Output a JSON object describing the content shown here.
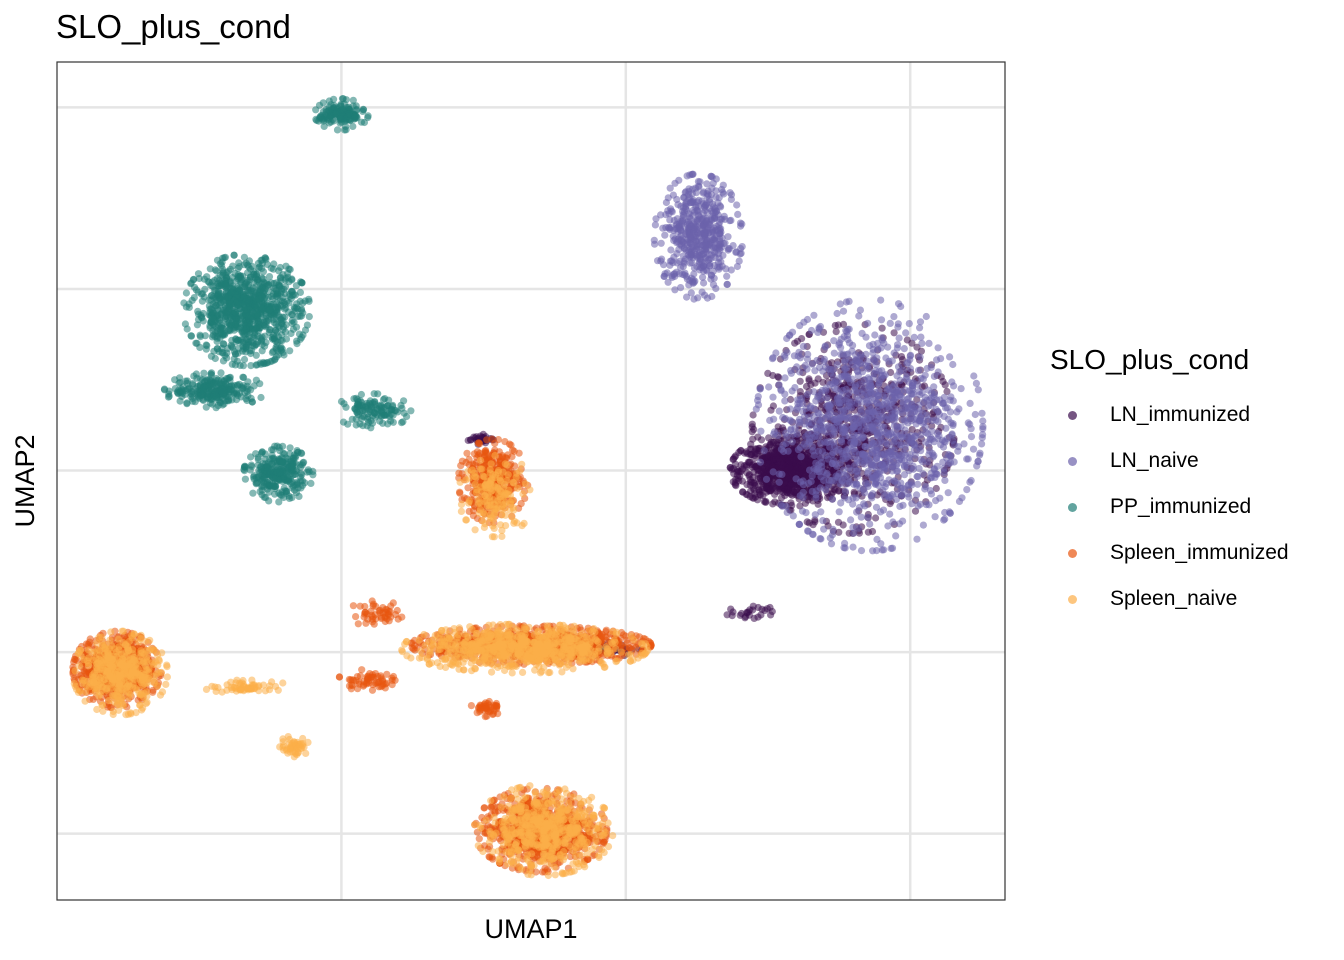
{
  "chart_data": {
    "type": "scatter",
    "title": "SLO_plus_cond",
    "xlabel": "UMAP1",
    "ylabel": "UMAP2",
    "xlim": [
      -10,
      20
    ],
    "ylim": [
      -11,
      13
    ],
    "x_gridlines": [
      -1,
      8,
      17
    ],
    "y_gridlines": [
      11.7,
      6.5,
      1.3,
      -3.9,
      -9.1
    ],
    "tick_labels_shown": false,
    "grid": true,
    "legend": {
      "title": "SLO_plus_cond",
      "position": "right"
    },
    "series": [
      {
        "name": "LN_immunized",
        "color": "#3a0d4d",
        "clusters": [
          {
            "cx": 13.2,
            "cy": 1.3,
            "rx": 1.9,
            "ry": 1.0,
            "n": 900
          },
          {
            "cx": 15.2,
            "cy": 2.5,
            "rx": 3.2,
            "ry": 3.0,
            "n": 650
          },
          {
            "cx": 12.0,
            "cy": -2.8,
            "rx": 0.8,
            "ry": 0.25,
            "n": 25
          },
          {
            "cx": 7.1,
            "cy": -3.8,
            "rx": 1.5,
            "ry": 0.25,
            "n": 80
          },
          {
            "cx": 3.4,
            "cy": 2.2,
            "rx": 0.5,
            "ry": 0.15,
            "n": 30
          }
        ]
      },
      {
        "name": "LN_naive",
        "color": "#6c63ab",
        "clusters": [
          {
            "cx": 15.7,
            "cy": 2.6,
            "rx": 3.6,
            "ry": 3.6,
            "n": 1100
          },
          {
            "cx": 10.3,
            "cy": 8.0,
            "rx": 1.4,
            "ry": 1.8,
            "n": 500
          }
        ]
      },
      {
        "name": "PP_immunized",
        "color": "#1f7d76",
        "clusters": [
          {
            "cx": -1.0,
            "cy": 11.5,
            "rx": 0.85,
            "ry": 0.45,
            "n": 150
          },
          {
            "cx": -4.0,
            "cy": 5.9,
            "rx": 2.0,
            "ry": 1.6,
            "n": 900
          },
          {
            "cx": -5.0,
            "cy": 3.6,
            "rx": 1.6,
            "ry": 0.5,
            "n": 250
          },
          {
            "cx": -3.0,
            "cy": 1.2,
            "rx": 1.1,
            "ry": 0.8,
            "n": 280
          },
          {
            "cx": 0.0,
            "cy": 3.0,
            "rx": 1.2,
            "ry": 0.5,
            "n": 120
          },
          {
            "cx": 5.5,
            "cy": -3.8,
            "rx": 1.8,
            "ry": 0.2,
            "n": 80
          }
        ]
      },
      {
        "name": "Spleen_immunized",
        "color": "#e8560f",
        "clusters": [
          {
            "cx": 3.8,
            "cy": 1.0,
            "rx": 1.1,
            "ry": 1.2,
            "n": 350
          },
          {
            "cx": 5.0,
            "cy": -3.7,
            "rx": 3.8,
            "ry": 0.55,
            "n": 900
          },
          {
            "cx": -8.1,
            "cy": -4.4,
            "rx": 1.4,
            "ry": 1.1,
            "n": 650
          },
          {
            "cx": 5.3,
            "cy": -9.0,
            "rx": 2.1,
            "ry": 1.2,
            "n": 750
          },
          {
            "cx": 0.2,
            "cy": -2.8,
            "rx": 1.0,
            "ry": 0.4,
            "n": 50
          },
          {
            "cx": -0.2,
            "cy": -4.7,
            "rx": 0.9,
            "ry": 0.3,
            "n": 60
          },
          {
            "cx": 3.6,
            "cy": -5.5,
            "rx": 0.5,
            "ry": 0.3,
            "n": 40
          }
        ]
      },
      {
        "name": "Spleen_naive",
        "color": "#fcae48",
        "clusters": [
          {
            "cx": 4.8,
            "cy": -3.8,
            "rx": 3.9,
            "ry": 0.7,
            "n": 700
          },
          {
            "cx": -8.0,
            "cy": -4.5,
            "rx": 1.5,
            "ry": 1.2,
            "n": 400
          },
          {
            "cx": 5.4,
            "cy": -9.0,
            "rx": 2.2,
            "ry": 1.3,
            "n": 500
          },
          {
            "cx": 3.9,
            "cy": 0.6,
            "rx": 1.2,
            "ry": 1.2,
            "n": 150
          },
          {
            "cx": -2.5,
            "cy": -6.6,
            "rx": 0.5,
            "ry": 0.3,
            "n": 50
          },
          {
            "cx": -4.0,
            "cy": -4.9,
            "rx": 1.4,
            "ry": 0.2,
            "n": 60
          }
        ]
      }
    ]
  }
}
